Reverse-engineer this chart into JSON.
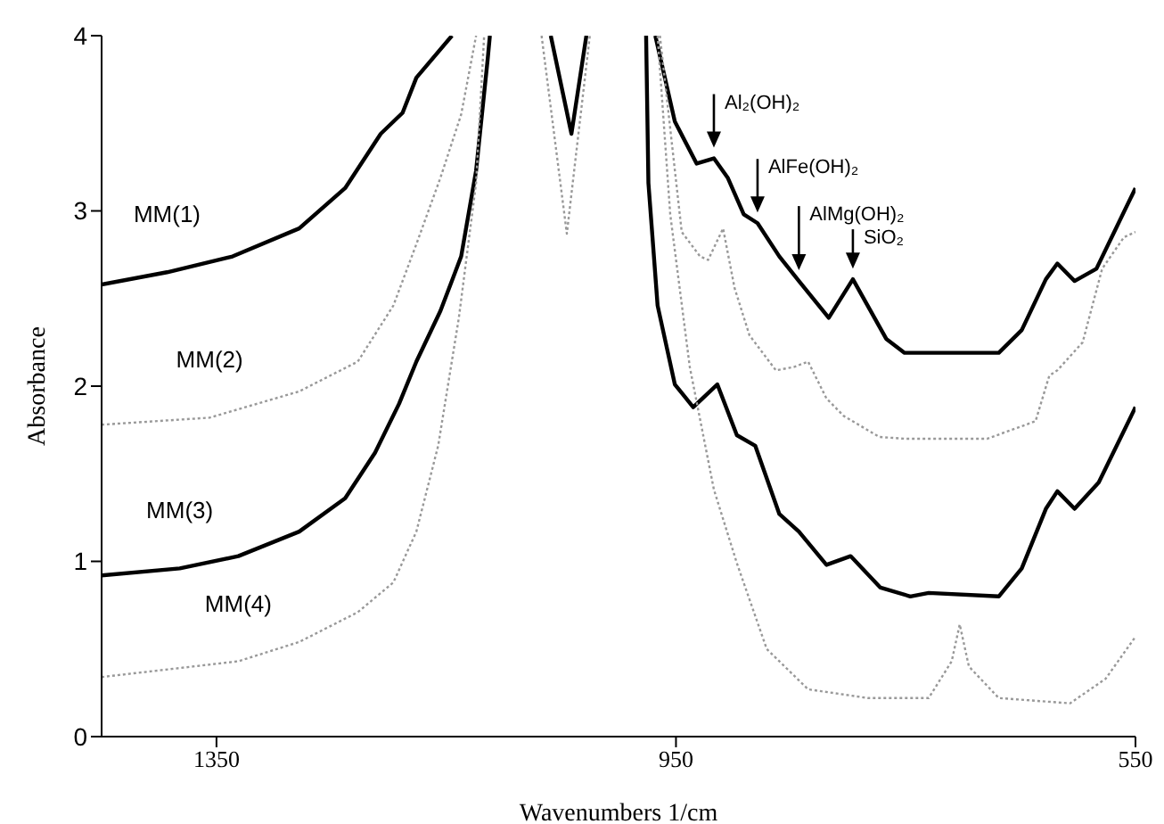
{
  "chart_data": {
    "type": "line",
    "xlabel": "Wavenumbers 1/cm",
    "ylabel": "Absorbance",
    "xlim": [
      1450,
      550
    ],
    "ylim": [
      0,
      4
    ],
    "xticks": [
      1350,
      950,
      550
    ],
    "yticks": [
      0,
      1,
      2,
      3,
      4
    ],
    "grid": false,
    "legend": false,
    "marker": "none",
    "series": [
      {
        "name": "MM(1)",
        "color": "#000000",
        "line_style": "solid",
        "x": [
          1450,
          1393,
          1336,
          1278,
          1238,
          1207,
          1188,
          1176,
          1145,
          null,
          1059,
          1041,
          1028,
          null,
          968,
          951,
          932,
          917,
          905,
          891,
          879,
          860,
          843,
          817,
          796,
          767,
          751,
          669,
          649,
          628,
          618,
          603,
          584,
          550
        ],
        "values": [
          2.58,
          2.65,
          2.74,
          2.9,
          3.13,
          3.44,
          3.56,
          3.76,
          4.0,
          null,
          4.0,
          3.44,
          4.0,
          null,
          4.0,
          3.51,
          3.27,
          3.3,
          3.19,
          2.98,
          2.93,
          2.74,
          2.6,
          2.39,
          2.61,
          2.27,
          2.19,
          2.19,
          2.32,
          2.61,
          2.7,
          2.6,
          2.67,
          3.13
        ]
      },
      {
        "name": "MM(2)",
        "color": "#999999",
        "line_style": "dotted",
        "x": [
          1450,
          1356,
          1278,
          1227,
          1196,
          1176,
          1155,
          1137,
          1124,
          null,
          1067,
          1045,
          1025,
          null,
          964,
          945,
          929,
          922,
          909,
          899,
          886,
          863,
          847,
          835,
          819,
          804,
          773,
          751,
          679,
          637,
          625,
          618,
          596,
          579,
          560,
          550
        ],
        "values": [
          1.78,
          1.82,
          1.97,
          2.14,
          2.46,
          2.81,
          3.19,
          3.55,
          4.0,
          null,
          4.0,
          2.87,
          4.0,
          null,
          4.0,
          2.88,
          2.74,
          2.72,
          2.9,
          2.56,
          2.29,
          2.09,
          2.11,
          2.14,
          1.93,
          1.83,
          1.71,
          1.7,
          1.7,
          1.8,
          2.06,
          2.09,
          2.25,
          2.67,
          2.85,
          2.88
        ]
      },
      {
        "name": "MM(3)",
        "color": "#000000",
        "line_style": "solid",
        "x": [
          1450,
          1382,
          1331,
          1278,
          1238,
          1212,
          1191,
          1176,
          1155,
          1137,
          1124,
          1114,
          1112,
          null,
          976,
          974,
          966,
          951,
          935,
          914,
          897,
          881,
          860,
          843,
          819,
          798,
          772,
          746,
          730,
          669,
          649,
          628,
          618,
          603,
          582,
          550
        ],
        "values": [
          0.92,
          0.96,
          1.03,
          1.17,
          1.36,
          1.62,
          1.9,
          2.14,
          2.43,
          2.74,
          3.23,
          3.86,
          4.0,
          null,
          4.0,
          3.16,
          2.46,
          2.01,
          1.88,
          2.01,
          1.72,
          1.66,
          1.27,
          1.17,
          0.98,
          1.03,
          0.85,
          0.8,
          0.82,
          0.8,
          0.96,
          1.3,
          1.4,
          1.3,
          1.45,
          1.88
        ]
      },
      {
        "name": "MM(4)",
        "color": "#999999",
        "line_style": "dotted",
        "x": [
          1450,
          1331,
          1278,
          1227,
          1196,
          1176,
          1157,
          1139,
          1124,
          1117,
          null,
          966,
          955,
          938,
          917,
          897,
          871,
          835,
          783,
          730,
          710,
          703,
          695,
          669,
          607,
          576,
          550
        ],
        "values": [
          0.34,
          0.43,
          0.54,
          0.71,
          0.88,
          1.17,
          1.66,
          2.39,
          3.16,
          4.0,
          null,
          4.0,
          2.98,
          2.11,
          1.41,
          0.99,
          0.5,
          0.27,
          0.22,
          0.22,
          0.43,
          0.64,
          0.4,
          0.22,
          0.19,
          0.33,
          0.57
        ]
      }
    ],
    "annotations": [
      {
        "text": "Al₂(OH)₂",
        "x": 917,
        "y": 3.3
      },
      {
        "text": "AlFe(OH)₂",
        "x": 879,
        "y": 2.93
      },
      {
        "text": "AlMg(OH)₂",
        "x": 843,
        "y": 2.6
      },
      {
        "text": "SiO₂",
        "x": 796,
        "y": 2.61
      }
    ]
  }
}
